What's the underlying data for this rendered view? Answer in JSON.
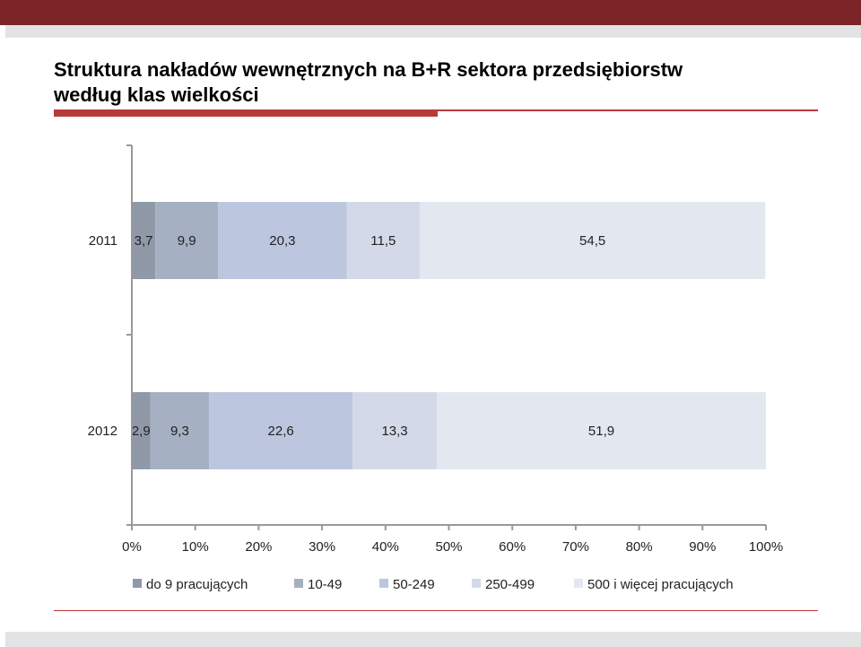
{
  "title_line1": "Struktura nakładów wewnętrznych na B+R sektora przedsiębiorstw",
  "title_line2": "według klas wielkości",
  "chart_data": {
    "type": "bar",
    "orientation": "horizontal",
    "stacked": true,
    "categories": [
      "2011",
      "2012"
    ],
    "series": [
      {
        "name": "do 9 pracujących",
        "values": [
          3.7,
          2.9
        ],
        "labels": [
          "3,7",
          "2,9"
        ],
        "color": "#8f99a8"
      },
      {
        "name": "10-49",
        "values": [
          9.9,
          9.3
        ],
        "labels": [
          "9,9",
          "9,3"
        ],
        "color": "#a5b0c2"
      },
      {
        "name": "50-249",
        "values": [
          20.3,
          22.6
        ],
        "labels": [
          "20,3",
          "22,6"
        ],
        "color": "#bcc6de"
      },
      {
        "name": "250-499",
        "values": [
          11.5,
          13.3
        ],
        "labels": [
          "11,5",
          "13,3"
        ],
        "color": "#d3d9e8"
      },
      {
        "name": "500 i więcej pracujących",
        "values": [
          54.5,
          51.9
        ],
        "labels": [
          "54,5",
          "51,9"
        ],
        "color": "#e3e7f0"
      }
    ],
    "x_ticks": [
      0,
      10,
      20,
      30,
      40,
      50,
      60,
      70,
      80,
      90,
      100
    ],
    "x_tick_labels": [
      "0%",
      "10%",
      "20%",
      "30%",
      "40%",
      "50%",
      "60%",
      "70%",
      "80%",
      "90%",
      "100%"
    ],
    "xlim": [
      0,
      100
    ],
    "grid": false,
    "legend_position": "bottom"
  }
}
